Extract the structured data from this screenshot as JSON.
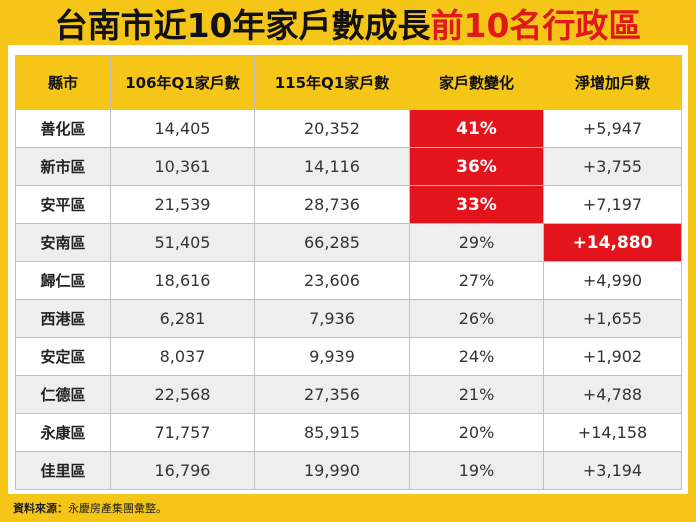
{
  "title": {
    "main": "台南市近10年家戶數成長",
    "highlight": "前10名行政區"
  },
  "colors": {
    "accent": "#f5c518",
    "highlight": "#e3141c",
    "row_alt": "#eeeeee"
  },
  "chart_data": {
    "type": "table",
    "columns": [
      "縣市",
      "106年Q1家戶數",
      "115年Q1家戶數",
      "家戶數變化",
      "淨增加戶數"
    ],
    "rows": [
      {
        "district": "善化區",
        "q1_106": "14,405",
        "q1_115": "20,352",
        "change": "41%",
        "net": "+5,947",
        "hl_change": true,
        "hl_net": false
      },
      {
        "district": "新市區",
        "q1_106": "10,361",
        "q1_115": "14,116",
        "change": "36%",
        "net": "+3,755",
        "hl_change": true,
        "hl_net": false
      },
      {
        "district": "安平區",
        "q1_106": "21,539",
        "q1_115": "28,736",
        "change": "33%",
        "net": "+7,197",
        "hl_change": true,
        "hl_net": false
      },
      {
        "district": "安南區",
        "q1_106": "51,405",
        "q1_115": "66,285",
        "change": "29%",
        "net": "+14,880",
        "hl_change": false,
        "hl_net": true
      },
      {
        "district": "歸仁區",
        "q1_106": "18,616",
        "q1_115": "23,606",
        "change": "27%",
        "net": "+4,990",
        "hl_change": false,
        "hl_net": false
      },
      {
        "district": "西港區",
        "q1_106": "6,281",
        "q1_115": "7,936",
        "change": "26%",
        "net": "+1,655",
        "hl_change": false,
        "hl_net": false
      },
      {
        "district": "安定區",
        "q1_106": "8,037",
        "q1_115": "9,939",
        "change": "24%",
        "net": "+1,902",
        "hl_change": false,
        "hl_net": false
      },
      {
        "district": "仁德區",
        "q1_106": "22,568",
        "q1_115": "27,356",
        "change": "21%",
        "net": "+4,788",
        "hl_change": false,
        "hl_net": false
      },
      {
        "district": "永康區",
        "q1_106": "71,757",
        "q1_115": "85,915",
        "change": "20%",
        "net": "+14,158",
        "hl_change": false,
        "hl_net": false
      },
      {
        "district": "佳里區",
        "q1_106": "16,796",
        "q1_115": "19,990",
        "change": "19%",
        "net": "+3,194",
        "hl_change": false,
        "hl_net": false
      }
    ]
  },
  "source": {
    "label": "資料來源：",
    "text": "永慶房產集團彙整。"
  }
}
